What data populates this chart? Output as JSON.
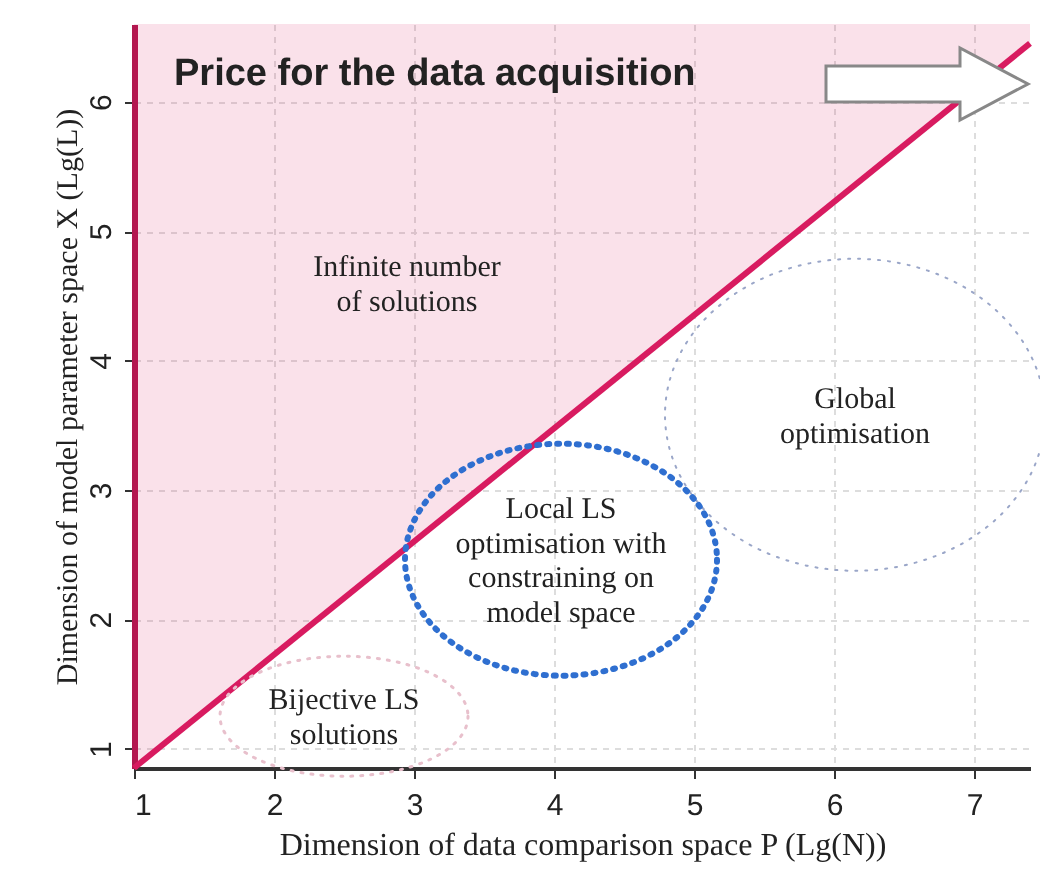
{
  "chart_data": {
    "type": "line",
    "title": "Price for the data acquisition",
    "xlabel": "Dimension of data comparison space P (Lg(N))",
    "ylabel": "Dimension of model parameter space X (Lg(L))",
    "xlim": [
      1,
      7.4
    ],
    "ylim": [
      0.85,
      6.6
    ],
    "xticks": [
      1,
      2,
      3,
      4,
      5,
      6,
      7
    ],
    "yticks": [
      1,
      2,
      3,
      4,
      5,
      6
    ],
    "grid": true,
    "series": [
      {
        "x": [
          1,
          7.4
        ],
        "values": [
          0.85,
          6.45
        ],
        "lower": [
          0.85,
          6.45
        ],
        "upper": [
          6.6,
          6.6
        ],
        "color": "#d81b60"
      }
    ],
    "annotations": [
      "Infinite number\nof solutions",
      "Global\noptimisation",
      "Local LS\noptimisation with\nconstraining on\nmodel space",
      "Bijective LS\nsolutions"
    ]
  }
}
